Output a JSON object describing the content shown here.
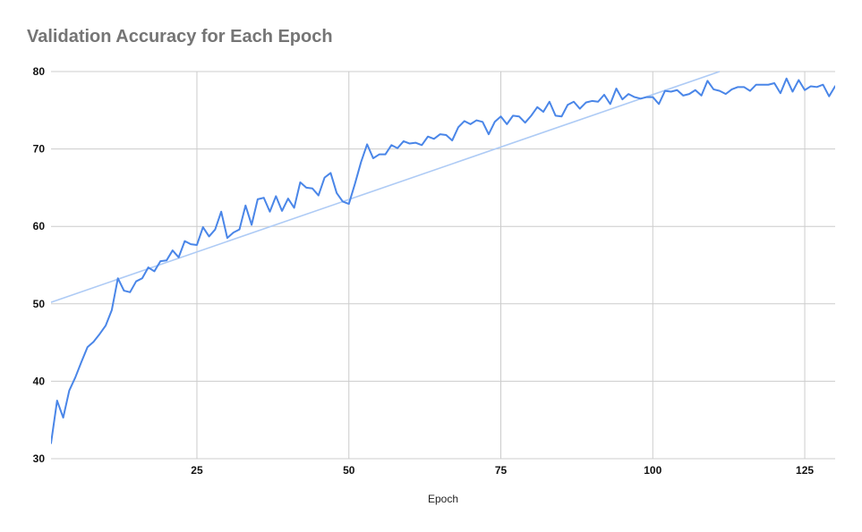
{
  "chart_data": {
    "type": "line",
    "title": "Validation Accuracy for Each Epoch",
    "xlabel": "Epoch",
    "ylabel": "",
    "xlim": [
      1,
      130
    ],
    "ylim": [
      30,
      80
    ],
    "x_ticks": [
      25,
      50,
      75,
      100,
      125
    ],
    "y_ticks": [
      30,
      40,
      50,
      60,
      70,
      80
    ],
    "grid": true,
    "legend": "none",
    "colors": {
      "series": "#4a86e8",
      "trendline": "#aecbf5",
      "grid": "#cccccc"
    },
    "series": [
      {
        "x": [
          1,
          2,
          3,
          4,
          5,
          6,
          7,
          8,
          9,
          10,
          11,
          12,
          13,
          14,
          15,
          16,
          17,
          18,
          19,
          20,
          21,
          22,
          23,
          24,
          25,
          26,
          27,
          28,
          29,
          30,
          31,
          32,
          33,
          34,
          35,
          36,
          37,
          38,
          39,
          40,
          41,
          42,
          43,
          44,
          45,
          46,
          47,
          48,
          49,
          50,
          51,
          52,
          53,
          54,
          55,
          56,
          57,
          58,
          59,
          60,
          61,
          62,
          63,
          64,
          65,
          66,
          67,
          68,
          69,
          70,
          71,
          72,
          73,
          74,
          75,
          76,
          77,
          78,
          79,
          80,
          81,
          82,
          83,
          84,
          85,
          86,
          87,
          88,
          89,
          90,
          91,
          92,
          93,
          94,
          95,
          96,
          97,
          98,
          99,
          100,
          101,
          102,
          103,
          104,
          105,
          106,
          107,
          108,
          109,
          110,
          111,
          112,
          113,
          114,
          115,
          116,
          117,
          118,
          119,
          120,
          121,
          122,
          123,
          124,
          125,
          126,
          127,
          128,
          129,
          130
        ],
        "values": [
          32.0,
          37.5,
          35.3,
          38.8,
          40.5,
          42.5,
          44.4,
          45.1,
          46.1,
          47.2,
          49.2,
          53.3,
          51.7,
          51.5,
          52.9,
          53.3,
          54.7,
          54.2,
          55.5,
          55.6,
          56.9,
          56.0,
          58.1,
          57.7,
          57.6,
          59.9,
          58.7,
          59.6,
          61.9,
          58.5,
          59.2,
          59.6,
          62.7,
          60.2,
          63.5,
          63.7,
          61.9,
          63.9,
          62.0,
          63.6,
          62.4,
          65.7,
          65.0,
          64.9,
          64.0,
          66.3,
          66.9,
          64.3,
          63.2,
          62.9,
          65.5,
          68.3,
          70.6,
          68.8,
          69.3,
          69.3,
          70.5,
          70.1,
          71.0,
          70.7,
          70.8,
          70.5,
          71.6,
          71.3,
          71.9,
          71.8,
          71.1,
          72.8,
          73.6,
          73.2,
          73.7,
          73.5,
          71.9,
          73.5,
          74.2,
          73.2,
          74.3,
          74.2,
          73.4,
          74.3,
          75.4,
          74.8,
          76.1,
          74.3,
          74.2,
          75.7,
          76.1,
          75.2,
          76.0,
          76.2,
          76.1,
          77.0,
          75.8,
          77.8,
          76.4,
          77.1,
          76.7,
          76.5,
          76.7,
          76.7,
          75.8,
          77.5,
          77.4,
          77.6,
          76.9,
          77.1,
          77.6,
          76.9,
          78.8,
          77.7,
          77.5,
          77.1,
          77.7,
          78.0,
          78.0,
          77.5,
          78.3,
          78.3,
          78.3,
          78.5,
          77.2,
          79.1,
          77.4,
          78.9,
          77.6,
          78.1,
          78.0,
          78.3,
          76.8,
          78.1
        ]
      }
    ],
    "trendline": {
      "x": [
        1,
        111
      ],
      "values": [
        50.2,
        80.0
      ]
    }
  }
}
